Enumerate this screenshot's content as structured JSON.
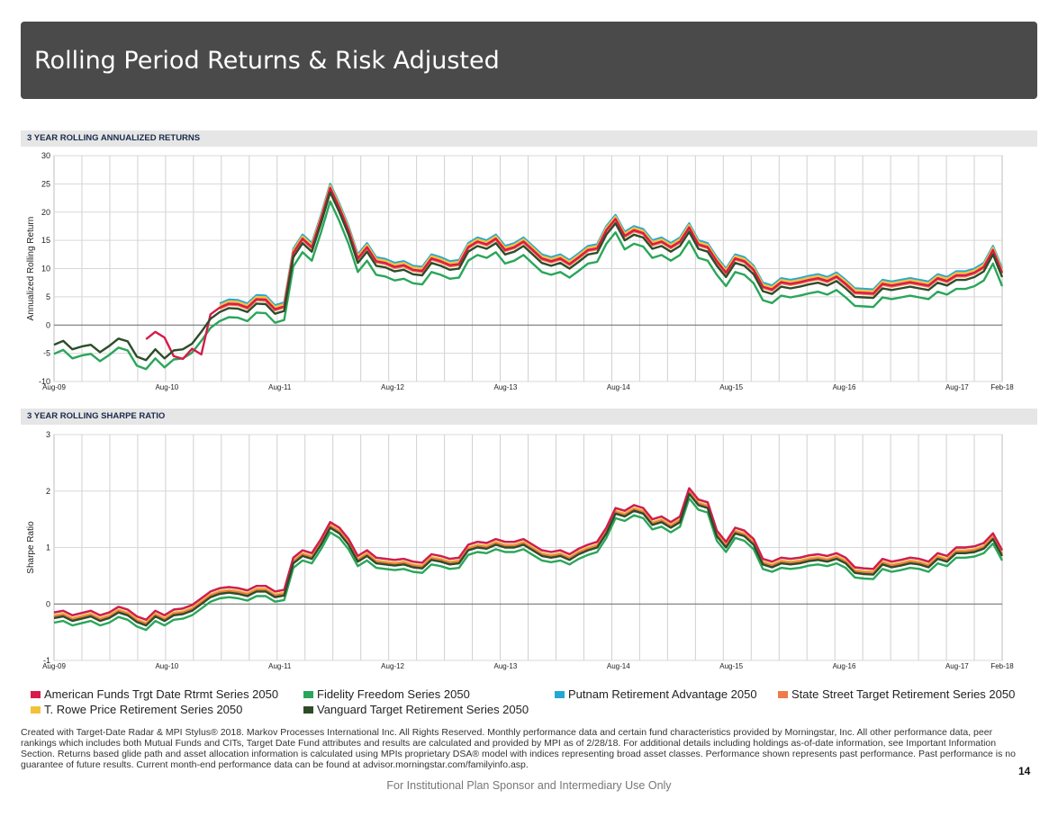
{
  "header": {
    "title": "Rolling Period Returns & Risk Adjusted"
  },
  "chart_titles": {
    "returns": "3 YEAR ROLLING ANNUALIZED RETURNS",
    "sharpe": "3 YEAR ROLLING SHARPE RATIO"
  },
  "colors": {
    "american": "#d81b4a",
    "fidelity": "#2aa65a",
    "putnam": "#23a8d6",
    "statestreet": "#ee7b4a",
    "trowe": "#f3c13a",
    "vanguard": "#2d4d28"
  },
  "legend": [
    {
      "key": "american",
      "label": "American Funds Trgt Date Rtrmt Series 2050"
    },
    {
      "key": "fidelity",
      "label": "Fidelity Freedom Series 2050"
    },
    {
      "key": "putnam",
      "label": "Putnam Retirement Advantage 2050"
    },
    {
      "key": "statestreet",
      "label": "State Street Target Retirement Series 2050"
    },
    {
      "key": "trowe",
      "label": "T. Rowe Price Retirement Series 2050"
    },
    {
      "key": "vanguard",
      "label": "Vanguard Target Retirement Series 2050"
    }
  ],
  "chart_data": [
    {
      "type": "line",
      "title": "3 YEAR ROLLING ANNUALIZED RETURNS",
      "xlabel": "",
      "ylabel": "Annualized Rolling Return",
      "ylim": [
        -10,
        30
      ],
      "yticks": [
        -10,
        -5,
        0,
        5,
        10,
        15,
        20,
        25,
        30
      ],
      "x_ticklabels": [
        "Aug-09",
        "Aug-10",
        "Aug-11",
        "Aug-12",
        "Aug-13",
        "Aug-14",
        "Aug-15",
        "Aug-16",
        "Aug-17",
        "Feb-18"
      ],
      "x_range": [
        "Aug-09",
        "Feb-18"
      ],
      "grid": true,
      "base_ref": "vanguard",
      "base_values": [
        -3.5,
        -2.8,
        -4.3,
        -3.8,
        -3.5,
        -4.8,
        -3.7,
        -2.4,
        -2.9,
        -5.6,
        -6.2,
        -4.3,
        -5.9,
        -4.5,
        -4.3,
        -3.3,
        -1.2,
        1.1,
        2.3,
        3.0,
        2.9,
        2.3,
        3.8,
        3.7,
        2.0,
        2.5,
        12.0,
        14.5,
        13.0,
        18.0,
        23.5,
        20.0,
        16.0,
        11.0,
        13.0,
        10.5,
        10.2,
        9.5,
        9.8,
        9.0,
        8.8,
        11.0,
        10.5,
        9.8,
        10.0,
        13.0,
        14.0,
        13.5,
        14.5,
        12.5,
        13.0,
        14.0,
        12.5,
        11.0,
        10.5,
        11.0,
        10.0,
        11.2,
        12.5,
        12.8,
        16.0,
        18.0,
        15.0,
        16.0,
        15.5,
        13.5,
        14.0,
        13.0,
        14.0,
        16.5,
        13.5,
        13.0,
        10.5,
        8.5,
        11.0,
        10.5,
        9.0,
        6.0,
        5.5,
        6.8,
        6.5,
        6.8,
        7.2,
        7.5,
        7.0,
        7.8,
        6.5,
        5.0,
        4.9,
        4.8,
        6.5,
        6.2,
        6.5,
        6.8,
        6.5,
        6.2,
        7.5,
        7.0,
        8.0,
        8.0,
        8.5,
        9.5,
        12.5,
        8.5
      ],
      "series": [
        {
          "name": "American Funds Trgt Date Rtrmt Series 2050",
          "key": "american",
          "offset": 0.8,
          "start_index": 10,
          "overrides": {
            "10": -2.5,
            "11": -1.2,
            "12": -2.2,
            "13": -5.5,
            "14": -6.0,
            "15": -4.2,
            "16": -5.2
          }
        },
        {
          "name": "Fidelity Freedom Series 2050",
          "key": "fidelity",
          "offset": -1.6
        },
        {
          "name": "Putnam Retirement Advantage 2050",
          "key": "putnam",
          "offset": 1.5,
          "start_index": 18
        },
        {
          "name": "State Street Target Retirement Series 2050",
          "key": "statestreet",
          "offset": 0.6,
          "start_index": 18
        },
        {
          "name": "T. Rowe Price Retirement Series 2050",
          "key": "trowe",
          "offset": 1.2,
          "start_index": 18
        },
        {
          "name": "Vanguard Target Retirement Series 2050",
          "key": "vanguard",
          "offset": 0
        }
      ]
    },
    {
      "type": "line",
      "title": "3 YEAR ROLLING SHARPE RATIO",
      "xlabel": "",
      "ylabel": "Sharpe Ratio",
      "ylim": [
        -1,
        3
      ],
      "yticks": [
        -1,
        0,
        1,
        2,
        3
      ],
      "x_ticklabels": [
        "Aug-09",
        "Aug-10",
        "Aug-11",
        "Aug-12",
        "Aug-13",
        "Aug-14",
        "Aug-15",
        "Aug-16",
        "Aug-17",
        "Feb-18"
      ],
      "x_range": [
        "Aug-09",
        "Feb-18"
      ],
      "grid": true,
      "base_ref": "vanguard",
      "base_values": [
        -0.25,
        -0.22,
        -0.3,
        -0.26,
        -0.22,
        -0.3,
        -0.25,
        -0.15,
        -0.2,
        -0.32,
        -0.38,
        -0.22,
        -0.3,
        -0.2,
        -0.18,
        -0.12,
        0.0,
        0.12,
        0.18,
        0.2,
        0.18,
        0.14,
        0.22,
        0.22,
        0.12,
        0.15,
        0.72,
        0.85,
        0.8,
        1.05,
        1.35,
        1.25,
        1.05,
        0.75,
        0.85,
        0.72,
        0.7,
        0.68,
        0.7,
        0.65,
        0.63,
        0.78,
        0.75,
        0.7,
        0.72,
        0.95,
        1.0,
        0.98,
        1.05,
        1.0,
        1.0,
        1.05,
        0.95,
        0.85,
        0.82,
        0.85,
        0.78,
        0.88,
        0.95,
        1.0,
        1.25,
        1.6,
        1.55,
        1.65,
        1.6,
        1.4,
        1.45,
        1.35,
        1.45,
        1.95,
        1.75,
        1.7,
        1.2,
        1.0,
        1.25,
        1.2,
        1.05,
        0.7,
        0.65,
        0.72,
        0.7,
        0.72,
        0.76,
        0.78,
        0.75,
        0.8,
        0.72,
        0.55,
        0.53,
        0.52,
        0.7,
        0.65,
        0.68,
        0.72,
        0.7,
        0.65,
        0.8,
        0.75,
        0.9,
        0.9,
        0.92,
        0.98,
        1.15,
        0.85
      ],
      "series": [
        {
          "name": "American Funds Trgt Date Rtrmt Series 2050",
          "key": "american",
          "offset": 0.1
        },
        {
          "name": "Fidelity Freedom Series 2050",
          "key": "fidelity",
          "offset": -0.08
        },
        {
          "name": "Putnam Retirement Advantage 2050",
          "key": "putnam",
          "offset": 0.1
        },
        {
          "name": "State Street Target Retirement Series 2050",
          "key": "statestreet",
          "offset": 0.03
        },
        {
          "name": "T. Rowe Price Retirement Series 2050",
          "key": "trowe",
          "offset": 0.05
        },
        {
          "name": "Vanguard Target Retirement Series 2050",
          "key": "vanguard",
          "offset": 0
        }
      ]
    }
  ],
  "footnote": "Created with Target-Date Radar & MPI Stylus® 2018. Markov Processes International Inc. All Rights Reserved. Monthly performance data and certain fund characteristics provided by Morningstar, Inc. All other performance data, peer rankings which includes both Mutual Funds and CITs, Target Date Fund attributes and results are calculated and provided by MPI as of 2/28/18. For additional details including holdings as-of-date information, see Important Information Section. Returns based glide path and asset allocation information is calculated using MPIs proprietary DSA® model with indices representing broad asset classes. Performance shown represents past performance. Past performance is no guarantee of future results. Current month-end performance data can be found at advisor.morningstar.com/familyinfo.asp.",
  "page_number": "14",
  "usage_note": "For Institutional Plan Sponsor and Intermediary Use Only"
}
